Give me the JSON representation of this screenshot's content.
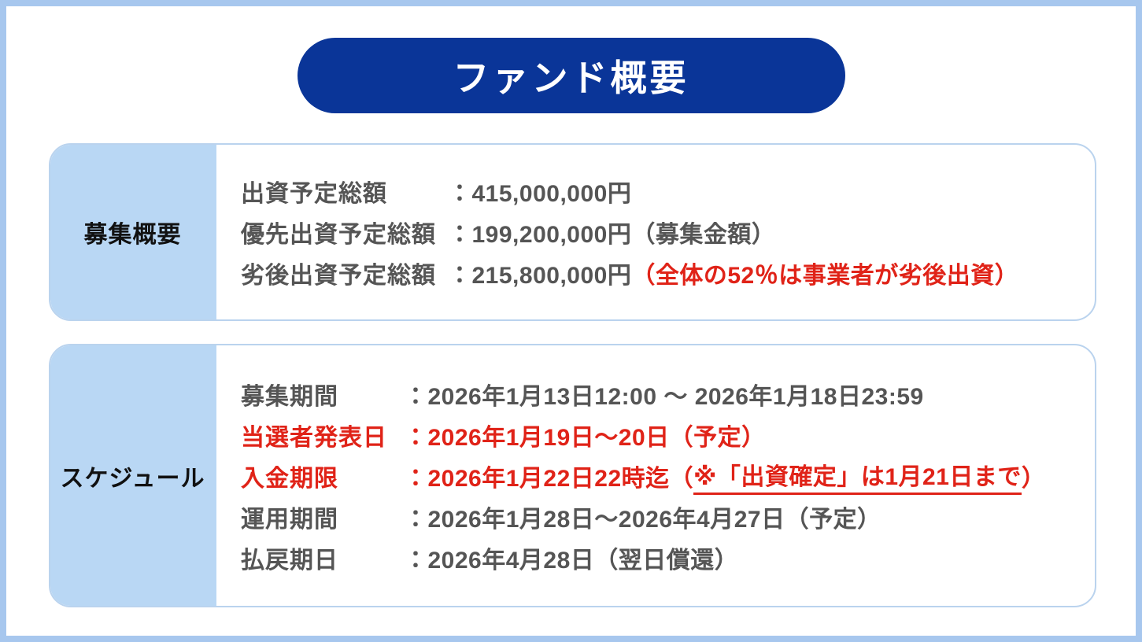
{
  "title": "ファンド概要",
  "overview": {
    "label": "募集概要",
    "rows": [
      {
        "label": "出資予定総額",
        "value": "：415,000,000円",
        "note": ""
      },
      {
        "label": "優先出資予定総額",
        "value": "：199,200,000円",
        "note": "（募集金額）"
      },
      {
        "label": "劣後出資予定総額",
        "value": "：215,800,000円",
        "note_red": "（全体の52％は事業者が劣後出資）"
      }
    ]
  },
  "schedule": {
    "label": "スケジュール",
    "rows": [
      {
        "label": "募集期間",
        "value": "：2026年1月13日12:00 ～ 2026年1月18日23:59"
      },
      {
        "label": "当選者発表日",
        "value": "：2026年1月19日～20日（予定）"
      },
      {
        "label": "入金期限",
        "value": "：2026年1月22日22時迄（",
        "underlined": "※「出資確定」は1月21日まで",
        "close": "）"
      },
      {
        "label": "運用期間",
        "value": "：2026年1月28日～2026年4月27日（予定）"
      },
      {
        "label": "払戻期日",
        "value": "：2026年4月28日（翌日償還）"
      }
    ]
  },
  "colors": {
    "accent_navy": "#0a3598",
    "alert_red": "#e02318",
    "frame_blue": "#a7c7ee",
    "label_fill_blue": "#b9d7f4",
    "box_border_blue": "#bad3ee",
    "body_text_gray": "#555555"
  }
}
